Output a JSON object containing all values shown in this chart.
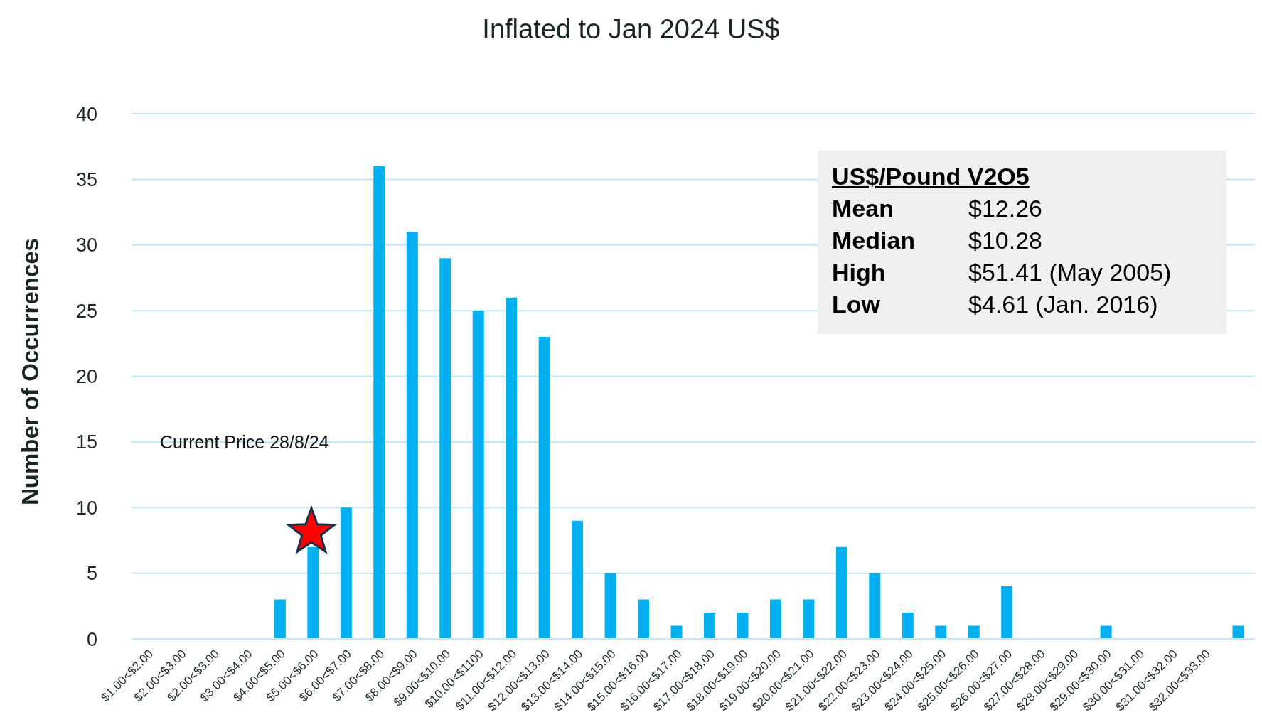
{
  "chart_data": {
    "type": "bar",
    "title": "Inflated to Jan 2024 US$",
    "ylabel": "Number of Occurrences",
    "categories": [
      "$1.00<$2.00",
      "$2.00<$3.00",
      "$2.00<$3.00",
      "$3.00<$4.00",
      "$4.00<$5.00",
      "$5.00<$6.00",
      "$6.00<$7.00",
      "$7.00<$8.00",
      "$8.00<$9.00",
      "$9.00<$10.00",
      "$10.00<$1100",
      "$11.00<$12.00",
      "$12.00<$13.00",
      "$13.00<$14.00",
      "$14.00<$15.00",
      "$15.00<$16.00",
      "$16.00<$17.00",
      "$17.00<$18.00",
      "$18.00<$19.00",
      "$19.00<$20.00",
      "$20.00<$21.00",
      "$21.00<$22.00",
      "$22.00<$23.00",
      "$23.00<$24.00",
      "$24.00<$25.00",
      "$25.00<$26.00",
      "$26.00<$27.00",
      "$27.00<$28.00",
      "$28.00<$29.00",
      "$29.00<$30.00",
      "$30.00<$31.00",
      "$31.00<$32.00",
      "$32.00<$33.00",
      null
    ],
    "values": [
      0,
      0,
      0,
      0,
      3,
      7,
      10,
      36,
      31,
      29,
      25,
      26,
      23,
      9,
      5,
      3,
      1,
      2,
      2,
      3,
      3,
      7,
      5,
      2,
      1,
      1,
      4,
      0,
      0,
      1,
      0,
      0,
      0,
      1
    ],
    "color": "#00b0f0",
    "ylim": [
      0,
      40
    ],
    "yticks": [
      0,
      5,
      10,
      15,
      20,
      25,
      30,
      35,
      40
    ],
    "grid": "y",
    "legend": false,
    "annotations": [
      "Current Price 28/8/24",
      "US$/Pound V2O5",
      "Mean",
      "$12.26",
      "Median",
      "$10.28",
      "High",
      "$51.41 (May 2005)",
      "Low",
      "$4.61 (Jan. 2016)"
    ]
  }
}
